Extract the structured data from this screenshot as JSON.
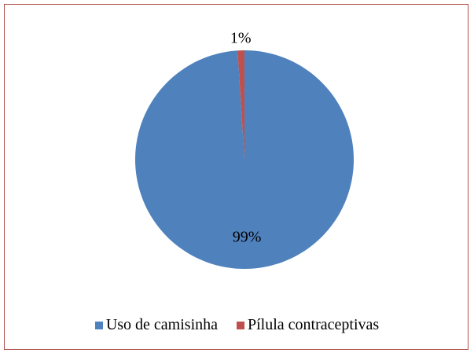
{
  "chart_data": {
    "type": "pie",
    "categories": [
      "Uso de camisinha",
      "Pílula contraceptivas"
    ],
    "values": [
      99,
      1
    ],
    "data_labels": [
      "99%",
      "1%"
    ],
    "colors": [
      "#4f81bd",
      "#c0504d"
    ],
    "start_angle_deg": 0,
    "direction": "clockwise",
    "legend_position": "bottom",
    "grid": false
  }
}
